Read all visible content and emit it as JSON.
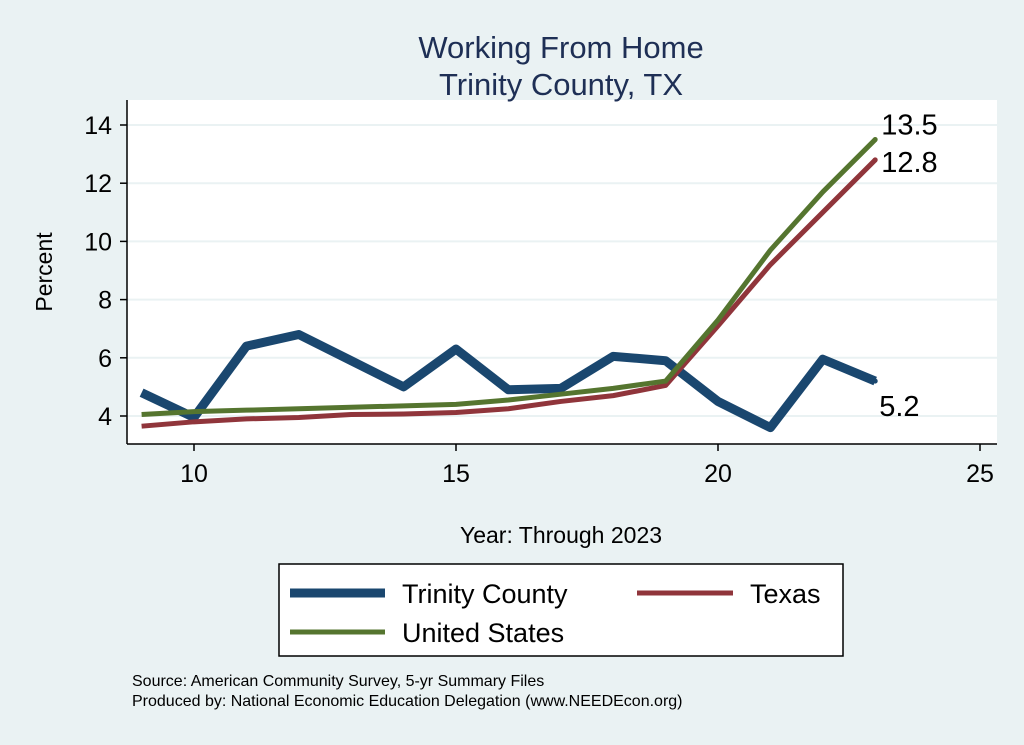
{
  "chart_data": {
    "type": "line",
    "title": "Working From Home",
    "subtitle": "Trinity County, TX",
    "xlabel": "Year: Through 2023",
    "ylabel": "Percent",
    "xlim": [
      8.8,
      25.3
    ],
    "ylim": [
      3.1,
      14.85
    ],
    "xticks": [
      10,
      15,
      20,
      25
    ],
    "yticks": [
      4,
      6,
      8,
      10,
      12,
      14
    ],
    "grid": true,
    "legend_placement": "bottom",
    "x": [
      9,
      10,
      11,
      12,
      13,
      14,
      15,
      16,
      17,
      18,
      19,
      20,
      21,
      22,
      23
    ],
    "series": [
      {
        "name": "Trinity County",
        "color": "#1a476f",
        "values": [
          4.8,
          3.95,
          6.4,
          6.8,
          5.9,
          5.0,
          6.3,
          4.9,
          4.95,
          6.05,
          5.9,
          4.5,
          3.6,
          5.95,
          5.2
        ],
        "end_label": "5.2"
      },
      {
        "name": "Texas",
        "color": "#90353b",
        "values": [
          3.65,
          3.8,
          3.9,
          3.95,
          4.05,
          4.07,
          4.12,
          4.25,
          4.5,
          4.7,
          5.05,
          7.1,
          9.2,
          11.0,
          12.8
        ],
        "end_label": "12.8"
      },
      {
        "name": "United States",
        "color": "#55752f",
        "values": [
          4.05,
          4.15,
          4.2,
          4.25,
          4.3,
          4.35,
          4.4,
          4.55,
          4.75,
          4.95,
          5.2,
          7.3,
          9.7,
          11.7,
          13.5
        ],
        "end_label": "13.5"
      }
    ],
    "notes": [
      "Source: American Community Survey, 5-yr Summary Files",
      "Produced by: National Economic Education Delegation (www.NEEDEcon.org)"
    ]
  }
}
